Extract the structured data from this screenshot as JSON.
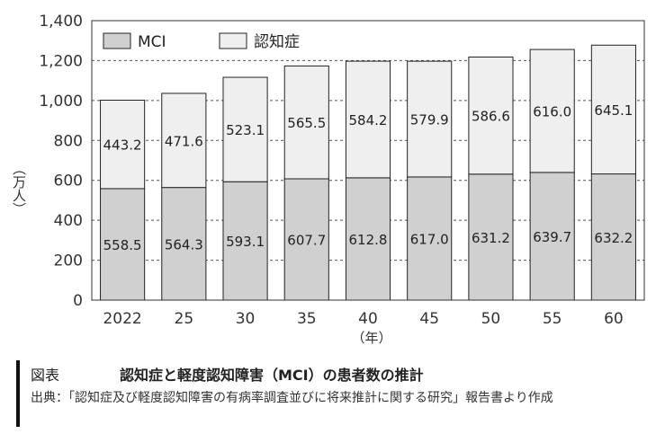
{
  "chart_data": {
    "type": "bar",
    "stacked": true,
    "categories": [
      "2022",
      "25",
      "30",
      "35",
      "40",
      "45",
      "50",
      "55",
      "60"
    ],
    "series": [
      {
        "name": "MCI",
        "color": "#d0d0d0",
        "values": [
          558.5,
          564.3,
          593.1,
          607.7,
          612.8,
          617.0,
          631.2,
          639.7,
          632.2
        ],
        "labels": [
          "558.5",
          "564.3",
          "593.1",
          "607.7",
          "612.8",
          "617.0",
          "631.2",
          "639.7",
          "632.2"
        ]
      },
      {
        "name": "認知症",
        "color": "#efefef",
        "values": [
          443.2,
          471.6,
          523.1,
          565.5,
          584.2,
          579.9,
          586.6,
          616.0,
          645.1
        ],
        "labels": [
          "443.2",
          "471.6",
          "523.1",
          "565.5",
          "584.2",
          "579.9",
          "586.6",
          "616.0",
          "645.1"
        ]
      }
    ],
    "ylim": [
      0,
      1400
    ],
    "yticks": [
      0,
      200,
      400,
      600,
      800,
      1000,
      1200,
      1400
    ],
    "ytick_labels": [
      "0",
      "200",
      "400",
      "600",
      "800",
      "1,000",
      "1,200",
      "1,400"
    ],
    "ylabel": "（万人）",
    "xlabel": "（年）",
    "grid": "horizontal-dashed",
    "legend_position": "top-left"
  },
  "caption": {
    "label": "図表",
    "title": "認知症と軽度認知障害（MCI）の患者数の推計"
  },
  "source": "出典：「認知症及び軽度認知障害の有病率調査並びに将来推計に関する研究」報告書より作成"
}
